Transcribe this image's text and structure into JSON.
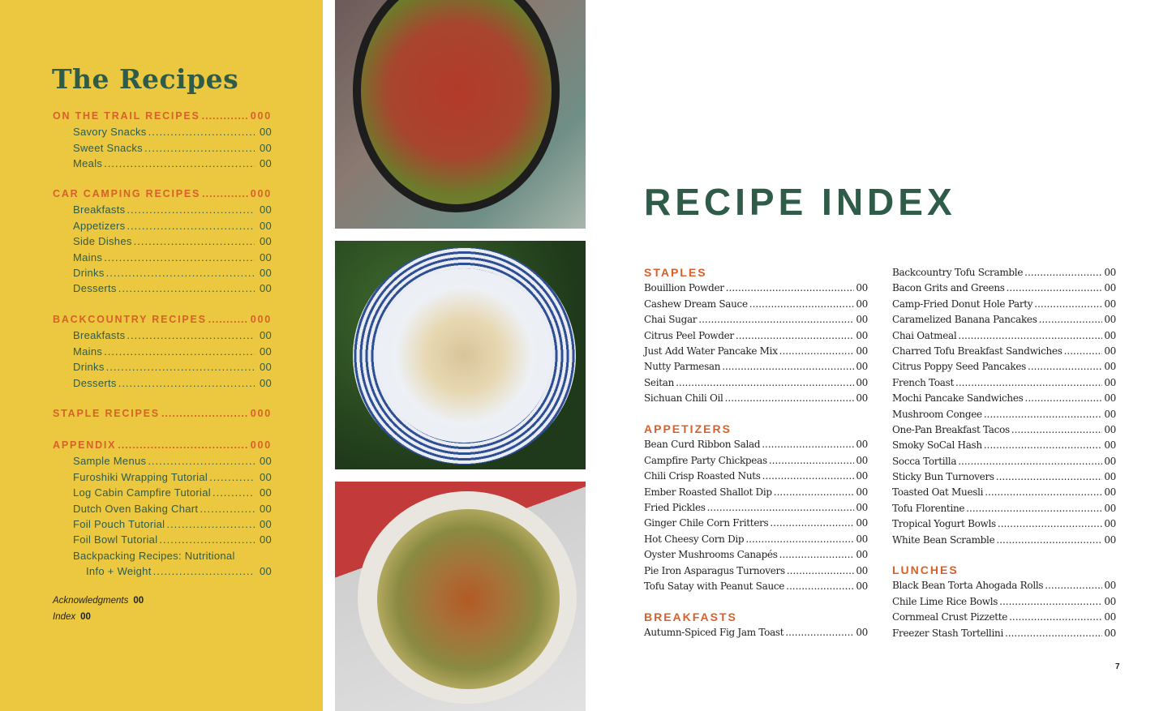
{
  "toc": {
    "title": "The Recipes",
    "sections": [
      {
        "title": "ON THE TRAIL RECIPES",
        "page": "000",
        "items": [
          {
            "label": "Savory Snacks",
            "page": "00"
          },
          {
            "label": "Sweet Snacks",
            "page": "00"
          },
          {
            "label": "Meals",
            "page": "00"
          }
        ]
      },
      {
        "title": "CAR CAMPING RECIPES",
        "page": "000",
        "items": [
          {
            "label": "Breakfasts",
            "page": "00"
          },
          {
            "label": "Appetizers",
            "page": "00"
          },
          {
            "label": "Side Dishes",
            "page": "00"
          },
          {
            "label": "Mains",
            "page": "00"
          },
          {
            "label": "Drinks",
            "page": "00"
          },
          {
            "label": "Desserts",
            "page": "00"
          }
        ]
      },
      {
        "title": "BACKCOUNTRY RECIPES",
        "page": "000",
        "items": [
          {
            "label": "Breakfasts",
            "page": "00"
          },
          {
            "label": "Mains",
            "page": "00"
          },
          {
            "label": "Drinks",
            "page": "00"
          },
          {
            "label": "Desserts",
            "page": "00"
          }
        ]
      },
      {
        "title": "STAPLE RECIPES",
        "page": "000",
        "items": []
      },
      {
        "title": "APPENDIX",
        "page": "000",
        "items": [
          {
            "label": "Sample Menus",
            "page": "00"
          },
          {
            "label": "Furoshiki Wrapping Tutorial",
            "page": "00"
          },
          {
            "label": "Log Cabin Campfire Tutorial",
            "page": "00"
          },
          {
            "label": "Dutch Oven Baking Chart",
            "page": "00"
          },
          {
            "label": "Foil Pouch Tutorial",
            "page": "00"
          },
          {
            "label": "Foil Bowl Tutorial",
            "page": "00"
          },
          {
            "label": "Backpacking Recipes: Nutritional",
            "continuation": "Info + Weight",
            "page": "00"
          }
        ]
      }
    ],
    "extras": [
      {
        "label": "Acknowledgments",
        "page": "00"
      },
      {
        "label": "Index",
        "page": "00"
      }
    ]
  },
  "index": {
    "title": "RECIPE INDEX",
    "columns": [
      [
        {
          "heading": "STAPLES",
          "items": [
            {
              "label": "Bouillion Powder",
              "page": "00"
            },
            {
              "label": "Cashew Dream Sauce",
              "page": "00"
            },
            {
              "label": "Chai Sugar",
              "page": "00"
            },
            {
              "label": "Citrus Peel Powder",
              "page": "00"
            },
            {
              "label": "Just Add Water Pancake Mix",
              "page": "00"
            },
            {
              "label": "Nutty Parmesan",
              "page": "00"
            },
            {
              "label": "Seitan",
              "page": "00"
            },
            {
              "label": "Sichuan Chili Oil",
              "page": "00"
            }
          ]
        },
        {
          "heading": "APPETIZERS",
          "items": [
            {
              "label": "Bean Curd Ribbon Salad",
              "page": "00"
            },
            {
              "label": "Campfire Party Chickpeas",
              "page": "00"
            },
            {
              "label": "Chili Crisp Roasted Nuts",
              "page": "00"
            },
            {
              "label": "Ember Roasted Shallot Dip",
              "page": "00"
            },
            {
              "label": "Fried Pickles",
              "page": "00"
            },
            {
              "label": "Ginger Chile Corn Fritters",
              "page": "00"
            },
            {
              "label": "Hot Cheesy Corn Dip",
              "page": "00"
            },
            {
              "label": "Oyster Mushrooms Canapés",
              "page": "00"
            },
            {
              "label": "Pie Iron Asparagus Turnovers",
              "page": "00"
            },
            {
              "label": "Tofu Satay with Peanut Sauce",
              "page": "00"
            }
          ]
        },
        {
          "heading": "BREAKFASTS",
          "items": [
            {
              "label": "Autumn-Spiced Fig Jam Toast",
              "page": "00"
            }
          ]
        }
      ],
      [
        {
          "heading": "",
          "items": [
            {
              "label": "Backcountry Tofu Scramble",
              "page": "00"
            },
            {
              "label": "Bacon Grits and Greens",
              "page": "00"
            },
            {
              "label": "Camp-Fried Donut Hole Party",
              "page": "00"
            },
            {
              "label": "Caramelized Banana Pancakes",
              "page": "00"
            },
            {
              "label": "Chai Oatmeal",
              "page": "00"
            },
            {
              "label": "Charred Tofu Breakfast Sandwiches",
              "page": "00"
            },
            {
              "label": "Citrus Poppy Seed Pancakes",
              "page": "00"
            },
            {
              "label": "French Toast",
              "page": "00"
            },
            {
              "label": "Mochi Pancake Sandwiches",
              "page": "00"
            },
            {
              "label": "Mushroom Congee",
              "page": "00"
            },
            {
              "label": "One-Pan Breakfast Tacos",
              "page": "00"
            },
            {
              "label": "Smoky SoCal Hash",
              "page": "00"
            },
            {
              "label": "Socca Tortilla",
              "page": "00"
            },
            {
              "label": "Sticky Bun Turnovers",
              "page": "00"
            },
            {
              "label": "Toasted Oat Muesli",
              "page": "00"
            },
            {
              "label": "Tofu Florentine",
              "page": "00"
            },
            {
              "label": "Tropical Yogurt Bowls",
              "page": "00"
            },
            {
              "label": "White Bean Scramble",
              "page": "00"
            }
          ]
        },
        {
          "heading": "LUNCHES",
          "items": [
            {
              "label": "Black Bean Torta Ahogada Rolls",
              "page": "00"
            },
            {
              "label": "Chile Lime Rice Bowls",
              "page": "00"
            },
            {
              "label": "Cornmeal Crust Pizzette",
              "page": "00"
            },
            {
              "label": "Freezer Stash Tortellini",
              "page": "00"
            }
          ]
        }
      ]
    ]
  },
  "page_number": "7",
  "colors": {
    "panel": "#EBC840",
    "green": "#2F5B49",
    "orange": "#D8602A"
  }
}
